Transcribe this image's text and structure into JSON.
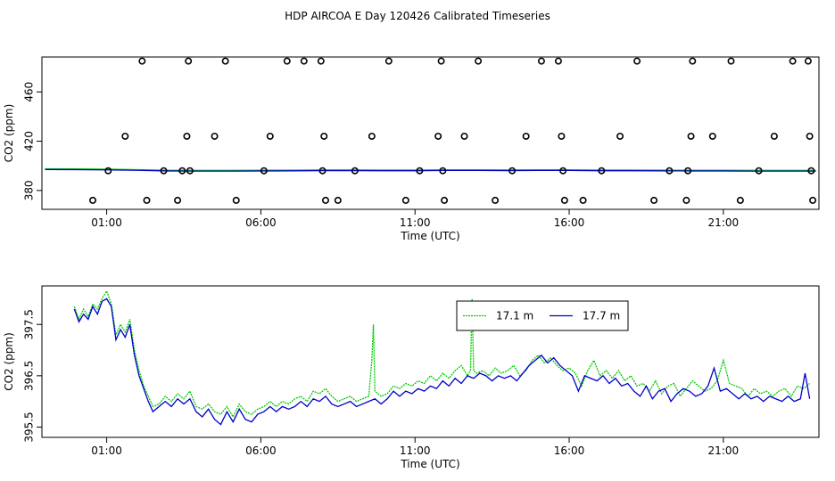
{
  "title": "HDP AIRCOA E  Day 120426  Calibrated Timeseries",
  "colors": {
    "green": "#00cc00",
    "blue": "#0000cc",
    "axis": "#000000"
  },
  "chart_data": [
    {
      "type": "scatter",
      "xlabel": "Time (UTC)",
      "ylabel": "CO2 (ppm)",
      "xlim": [
        -1.1,
        24.1
      ],
      "ylim": [
        364.7,
        488.3
      ],
      "xticks": [
        1,
        6,
        11,
        16,
        21
      ],
      "xtick_labels": [
        "01:00",
        "06:00",
        "11:00",
        "16:00",
        "21:00"
      ],
      "yticks": [
        380,
        420,
        460
      ],
      "ytick_labels": [
        "380",
        "420",
        "460"
      ],
      "points": {
        "x": [
          0.55,
          1.05,
          1.6,
          2.15,
          2.3,
          2.85,
          3.3,
          3.45,
          3.6,
          3.65,
          3.7,
          4.85,
          4.5,
          5.2,
          6.1,
          6.3,
          6.85,
          7.4,
          7.95,
          8.05,
          8.0,
          8.1,
          8.5,
          9.05,
          9.6,
          10.15,
          10.7,
          11.15,
          11.75,
          11.85,
          11.9,
          11.95,
          12.6,
          13.05,
          13.6,
          14.15,
          14.6,
          15.1,
          15.65,
          15.75,
          15.8,
          15.85,
          16.45,
          17.05,
          17.65,
          18.2,
          18.75,
          19.25,
          19.8,
          19.85,
          19.95,
          20.0,
          20.65,
          21.25,
          21.55,
          22.15,
          22.65,
          23.25,
          23.75,
          23.8,
          23.85,
          23.9
        ],
        "y": [
          372,
          396,
          424,
          485,
          372,
          396,
          372,
          396,
          424,
          485,
          396,
          485,
          424,
          372,
          396,
          424,
          485,
          485,
          485,
          424,
          396,
          372,
          372,
          396,
          424,
          485,
          372,
          396,
          424,
          485,
          396,
          372,
          424,
          485,
          372,
          396,
          424,
          485,
          485,
          424,
          396,
          372,
          372,
          396,
          424,
          485,
          372,
          396,
          372,
          396,
          424,
          485,
          424,
          485,
          372,
          396,
          424,
          485,
          485,
          424,
          396,
          372
        ]
      },
      "series": [
        {
          "values_desc": "line",
          "x": [
            -1.0,
            0.0,
            1.0,
            2.0,
            3.0,
            4.0,
            5.0,
            6.0,
            7.0,
            8.0,
            9.0,
            10.0,
            11.0,
            12.0,
            13.0,
            14.0,
            15.0,
            16.0,
            17.0,
            18.0,
            19.0,
            20.0,
            21.0,
            22.0,
            23.0,
            24.0
          ],
          "y": [
            397.3,
            397.2,
            397.0,
            396.6,
            396.1,
            396.0,
            396.0,
            396.1,
            396.2,
            396.4,
            396.4,
            396.3,
            396.3,
            396.5,
            396.5,
            396.4,
            396.5,
            396.5,
            396.3,
            396.3,
            396.2,
            396.1,
            396.1,
            396.0,
            396.0,
            396.0
          ]
        }
      ]
    },
    {
      "type": "line",
      "xlabel": "Time (UTC)",
      "ylabel": "CO2 (ppm)",
      "xlim": [
        -1.1,
        24.1
      ],
      "ylim": [
        395.3,
        398.25
      ],
      "xticks": [
        1,
        6,
        11,
        16,
        21
      ],
      "xtick_labels": [
        "01:00",
        "06:00",
        "11:00",
        "16:00",
        "21:00"
      ],
      "yticks": [
        395.5,
        396.5,
        397.5
      ],
      "ytick_labels": [
        "395.5",
        "396.5",
        "397.5"
      ],
      "legend": {
        "placement": "top-center"
      },
      "series": [
        {
          "name": "17.1 m",
          "color": "#00cc00",
          "x": [
            -0.05,
            0.1,
            0.25,
            0.4,
            0.55,
            0.7,
            0.85,
            1.0,
            1.15,
            1.3,
            1.45,
            1.6,
            1.75,
            1.9,
            2.05,
            2.2,
            2.35,
            2.5,
            2.7,
            2.9,
            3.1,
            3.3,
            3.5,
            3.7,
            3.9,
            4.1,
            4.3,
            4.5,
            4.7,
            4.9,
            5.1,
            5.3,
            5.5,
            5.7,
            5.9,
            6.1,
            6.3,
            6.5,
            6.7,
            6.9,
            7.1,
            7.3,
            7.5,
            7.7,
            7.9,
            8.1,
            8.3,
            8.5,
            8.7,
            8.9,
            9.1,
            9.3,
            9.5,
            9.6,
            9.65,
            9.7,
            9.9,
            10.1,
            10.3,
            10.5,
            10.7,
            10.9,
            11.1,
            11.3,
            11.5,
            11.7,
            11.9,
            12.1,
            12.3,
            12.5,
            12.7,
            12.8,
            12.85,
            12.9,
            13.0,
            13.2,
            13.4,
            13.6,
            13.8,
            14.0,
            14.2,
            14.4,
            14.6,
            14.8,
            15.0,
            15.2,
            15.4,
            15.6,
            15.8,
            16.0,
            16.2,
            16.4,
            16.6,
            16.8,
            17.0,
            17.2,
            17.4,
            17.6,
            17.8,
            18.0,
            18.2,
            18.4,
            18.6,
            18.8,
            19.0,
            19.2,
            19.4,
            19.6,
            19.8,
            20.0,
            20.2,
            20.4,
            20.6,
            20.8,
            21.0,
            21.2,
            21.4,
            21.6,
            21.8,
            22.0,
            22.2,
            22.4,
            22.6,
            22.8,
            23.0,
            23.2,
            23.4,
            23.6,
            23.8
          ],
          "y": [
            397.85,
            397.6,
            397.8,
            397.65,
            397.9,
            397.8,
            398.0,
            398.15,
            397.9,
            397.3,
            397.5,
            397.35,
            397.6,
            397.0,
            396.6,
            396.3,
            396.1,
            395.9,
            395.95,
            396.1,
            396.0,
            396.15,
            396.05,
            396.2,
            395.9,
            395.85,
            395.95,
            395.8,
            395.75,
            395.9,
            395.7,
            395.95,
            395.8,
            395.75,
            395.85,
            395.9,
            396.0,
            395.9,
            396.0,
            395.95,
            396.05,
            396.1,
            396.0,
            396.2,
            396.15,
            396.25,
            396.1,
            396.0,
            396.05,
            396.1,
            396.0,
            396.05,
            396.1,
            396.8,
            397.5,
            396.2,
            396.1,
            396.15,
            396.3,
            396.25,
            396.35,
            396.3,
            396.4,
            396.35,
            396.5,
            396.4,
            396.55,
            396.45,
            396.6,
            396.7,
            396.5,
            396.6,
            398.0,
            396.6,
            396.55,
            396.6,
            396.5,
            396.65,
            396.55,
            396.6,
            396.7,
            396.5,
            396.6,
            396.8,
            396.9,
            396.75,
            396.85,
            396.7,
            396.6,
            396.65,
            396.55,
            396.3,
            396.6,
            396.8,
            396.5,
            396.6,
            396.45,
            396.6,
            396.4,
            396.5,
            396.3,
            396.35,
            396.2,
            396.4,
            396.15,
            396.3,
            396.35,
            396.1,
            396.25,
            396.4,
            396.3,
            396.2,
            396.25,
            396.4,
            396.8,
            396.35,
            396.3,
            396.25,
            396.1,
            396.25,
            396.15,
            396.2,
            396.1,
            396.2,
            396.25,
            396.1,
            396.3,
            396.25,
            396.35
          ]
        },
        {
          "name": "17.7 m",
          "color": "#0000cc",
          "x": [
            -0.05,
            0.1,
            0.25,
            0.4,
            0.55,
            0.7,
            0.85,
            1.0,
            1.15,
            1.3,
            1.45,
            1.6,
            1.75,
            1.9,
            2.05,
            2.2,
            2.35,
            2.5,
            2.7,
            2.9,
            3.1,
            3.3,
            3.5,
            3.7,
            3.9,
            4.1,
            4.3,
            4.5,
            4.7,
            4.9,
            5.1,
            5.3,
            5.5,
            5.7,
            5.9,
            6.1,
            6.3,
            6.5,
            6.7,
            6.9,
            7.1,
            7.3,
            7.5,
            7.7,
            7.9,
            8.1,
            8.3,
            8.5,
            8.7,
            8.9,
            9.1,
            9.3,
            9.5,
            9.7,
            9.9,
            10.1,
            10.3,
            10.5,
            10.7,
            10.9,
            11.1,
            11.3,
            11.5,
            11.7,
            11.9,
            12.1,
            12.3,
            12.5,
            12.7,
            12.9,
            13.1,
            13.3,
            13.5,
            13.7,
            13.9,
            14.1,
            14.3,
            14.5,
            14.7,
            14.9,
            15.1,
            15.3,
            15.5,
            15.7,
            15.9,
            16.1,
            16.3,
            16.5,
            16.7,
            16.9,
            17.1,
            17.3,
            17.5,
            17.7,
            17.9,
            18.1,
            18.3,
            18.5,
            18.7,
            18.9,
            19.1,
            19.3,
            19.5,
            19.7,
            19.9,
            20.1,
            20.3,
            20.5,
            20.7,
            20.9,
            21.1,
            21.3,
            21.5,
            21.7,
            21.9,
            22.1,
            22.3,
            22.5,
            22.7,
            22.9,
            23.1,
            23.3,
            23.5,
            23.65,
            23.8
          ],
          "y": [
            397.8,
            397.55,
            397.7,
            397.6,
            397.85,
            397.7,
            397.95,
            398.0,
            397.85,
            397.2,
            397.4,
            397.25,
            397.5,
            396.9,
            396.5,
            396.25,
            396.0,
            395.8,
            395.9,
            396.0,
            395.9,
            396.05,
            395.95,
            396.05,
            395.8,
            395.7,
            395.85,
            395.65,
            395.55,
            395.8,
            395.6,
            395.85,
            395.65,
            395.6,
            395.75,
            395.8,
            395.9,
            395.8,
            395.9,
            395.85,
            395.9,
            396.0,
            395.9,
            396.05,
            396.0,
            396.1,
            395.95,
            395.9,
            395.95,
            396.0,
            395.9,
            395.95,
            396.0,
            396.05,
            395.95,
            396.05,
            396.2,
            396.1,
            396.2,
            396.15,
            396.25,
            396.2,
            396.3,
            396.25,
            396.4,
            396.3,
            396.45,
            396.35,
            396.5,
            396.45,
            396.55,
            396.5,
            396.4,
            396.5,
            396.45,
            396.5,
            396.4,
            396.55,
            396.7,
            396.8,
            396.9,
            396.75,
            396.85,
            396.7,
            396.6,
            396.5,
            396.2,
            396.5,
            396.45,
            396.4,
            396.5,
            396.35,
            396.45,
            396.3,
            396.35,
            396.2,
            396.1,
            396.3,
            396.05,
            396.2,
            396.25,
            396.0,
            396.15,
            396.25,
            396.2,
            396.1,
            396.15,
            396.3,
            396.65,
            396.2,
            396.25,
            396.15,
            396.05,
            396.15,
            396.05,
            396.1,
            396.0,
            396.1,
            396.05,
            396.0,
            396.1,
            396.0,
            396.05,
            396.55,
            396.05
          ]
        }
      ]
    }
  ]
}
